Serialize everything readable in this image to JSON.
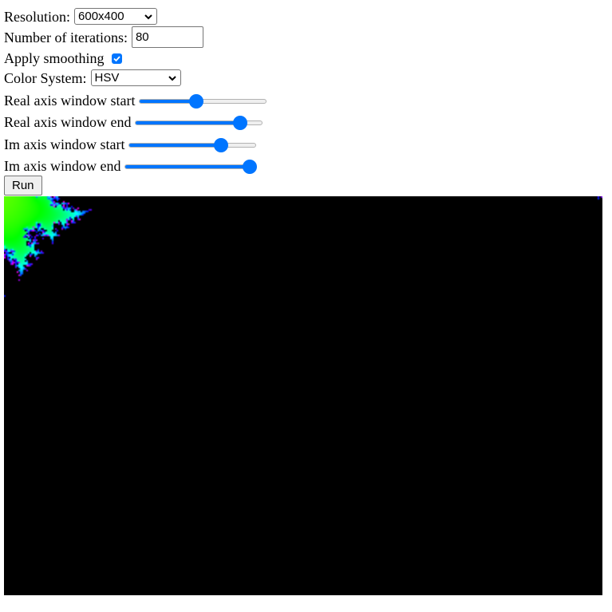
{
  "controls": {
    "resolution": {
      "label": "Resolution:",
      "value": "600x400"
    },
    "iterations": {
      "label": "Number of iterations:",
      "value": "80"
    },
    "smoothing": {
      "label": "Apply smoothing",
      "checked": true
    },
    "color_system": {
      "label": "Color System:",
      "value": "HSV"
    },
    "real_start": {
      "label": "Real axis window start",
      "level": 0.45
    },
    "real_end": {
      "label": "Real axis window end",
      "level": 0.82
    },
    "im_start": {
      "label": "Im axis window start",
      "level": 0.72
    },
    "im_end": {
      "label": "Im axis window end",
      "level": 0.98
    },
    "run_button": {
      "label": "Run"
    }
  },
  "colors": {
    "accent": "#0075ff"
  },
  "output": {
    "description_icon": "mandelbrot-canvas"
  }
}
